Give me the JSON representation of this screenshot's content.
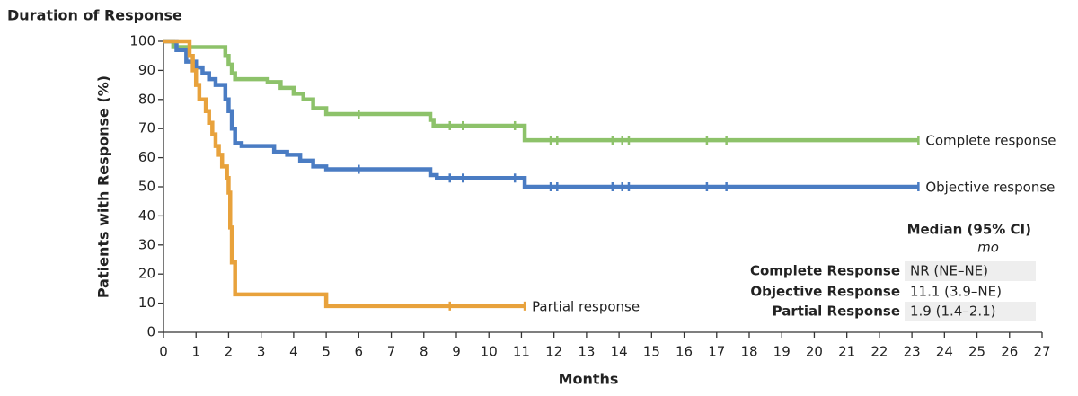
{
  "chart_data": {
    "type": "km",
    "title": "Duration of Response",
    "x_label": "Months",
    "y_label": "Patients with Response (%)",
    "xlim": [
      0,
      27
    ],
    "ylim": [
      0,
      100
    ],
    "xticks": [
      0,
      1,
      2,
      3,
      4,
      5,
      6,
      7,
      8,
      9,
      10,
      11,
      12,
      13,
      14,
      15,
      16,
      17,
      18,
      19,
      20,
      21,
      22,
      23,
      24,
      25,
      26,
      27
    ],
    "yticks": [
      0,
      10,
      20,
      30,
      40,
      50,
      60,
      70,
      80,
      90,
      100
    ],
    "series": [
      {
        "name": "Complete response",
        "color": "#8dc26a",
        "x": [
          0,
          0.3,
          1.9,
          2.0,
          2.1,
          2.2,
          3.2,
          3.6,
          4.0,
          4.3,
          4.6,
          5.0,
          8.2,
          8.3,
          11.1,
          23.2
        ],
        "values": [
          100,
          98,
          95,
          92,
          89,
          87,
          86,
          84,
          82,
          80,
          77,
          75,
          73,
          71,
          66,
          66
        ],
        "censored": [
          6,
          8.8,
          9.2,
          10.8,
          11.9,
          12.1,
          13.8,
          14.1,
          14.3,
          16.7,
          17.3,
          23.2
        ]
      },
      {
        "name": "Objective response",
        "color": "#4a7cc3",
        "x": [
          0,
          0.4,
          0.7,
          1.0,
          1.2,
          1.4,
          1.6,
          1.9,
          2.0,
          2.1,
          2.2,
          2.4,
          3.4,
          3.8,
          4.2,
          4.6,
          5.0,
          8.2,
          8.4,
          11.1,
          23.2
        ],
        "values": [
          100,
          97,
          93,
          91,
          89,
          87,
          85,
          80,
          76,
          70,
          65,
          64,
          62,
          61,
          59,
          57,
          56,
          54,
          53,
          50,
          50
        ],
        "censored": [
          6,
          8.8,
          9.2,
          10.8,
          11.9,
          12.1,
          13.8,
          14.1,
          14.3,
          16.7,
          17.3,
          23.2
        ]
      },
      {
        "name": "Partial response",
        "color": "#e8a23c",
        "x": [
          0,
          0.8,
          0.9,
          1.0,
          1.1,
          1.3,
          1.4,
          1.5,
          1.6,
          1.7,
          1.8,
          1.95,
          2.0,
          2.05,
          2.1,
          2.2,
          5.0,
          11.1
        ],
        "values": [
          100,
          95,
          90,
          85,
          80,
          76,
          72,
          68,
          64,
          61,
          57,
          53,
          48,
          36,
          24,
          13,
          9,
          9
        ],
        "censored": [
          8.8,
          11.1
        ]
      }
    ],
    "median_table": {
      "title": "Median (95% CI)",
      "unit": "mo",
      "rows": [
        [
          "Complete Response",
          "NR (NE–NE)"
        ],
        [
          "Objective Response",
          "11.1 (3.9–NE)"
        ],
        [
          "Partial Response",
          "1.9 (1.4–2.1)"
        ]
      ]
    }
  }
}
